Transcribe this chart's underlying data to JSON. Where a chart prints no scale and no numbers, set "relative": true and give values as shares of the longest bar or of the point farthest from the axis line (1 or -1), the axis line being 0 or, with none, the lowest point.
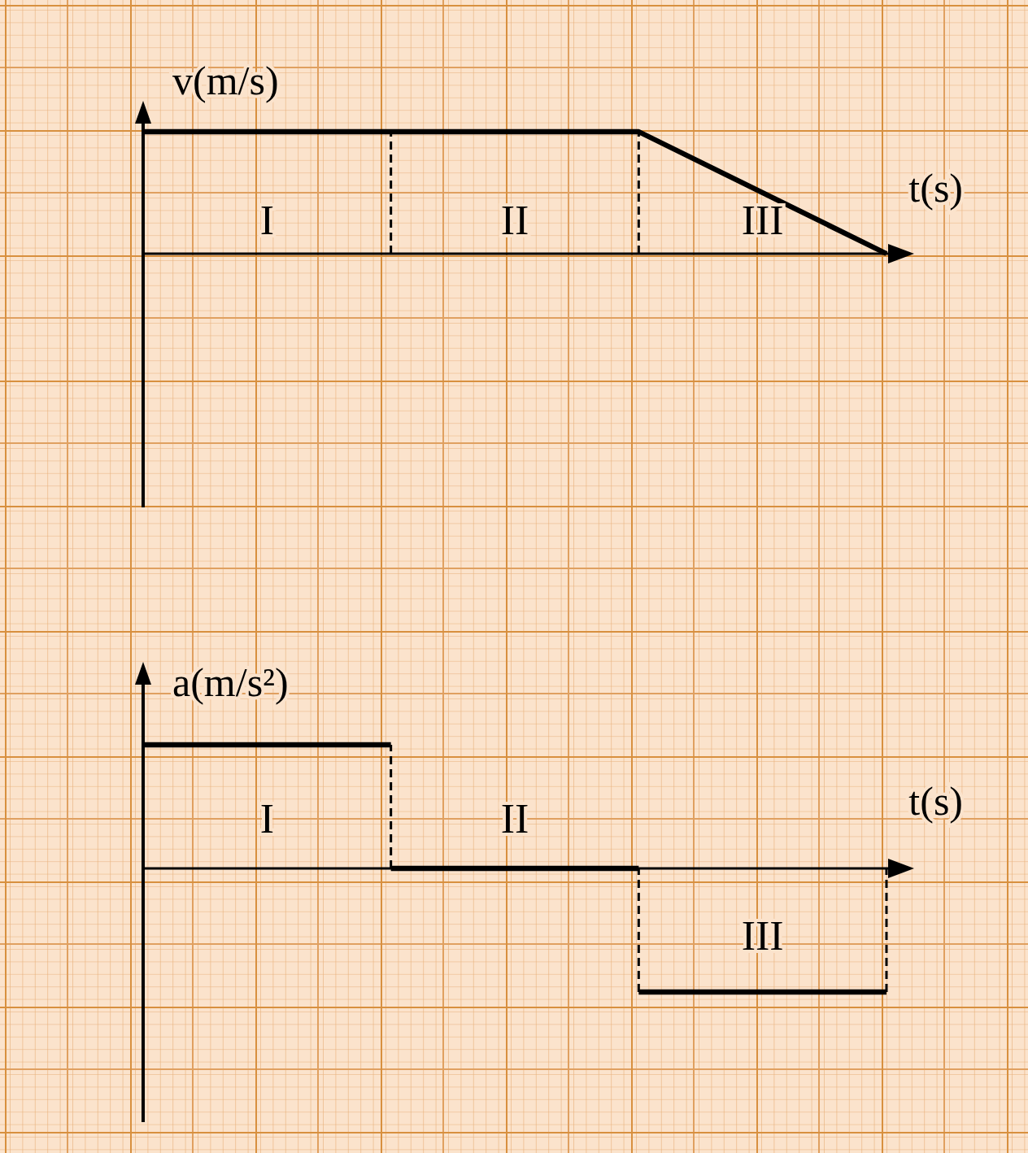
{
  "chart_data": [
    {
      "type": "line",
      "relative": true,
      "xlabel": "t(s)",
      "ylabel": "v(m/s)",
      "categories": [
        null,
        null,
        null,
        null
      ],
      "values": [
        1,
        1,
        1,
        0
      ],
      "color": "#000000",
      "annotations": [
        "I",
        "II",
        "III"
      ]
    },
    {
      "type": "step",
      "relative": true,
      "xlabel": "t(s)",
      "ylabel": "a(m/s²)",
      "categories": [
        null,
        null,
        null,
        null
      ],
      "values": [
        1,
        0,
        -1,
        -1
      ],
      "color": "#000000",
      "annotations": [
        "I",
        "II",
        "III"
      ]
    }
  ]
}
